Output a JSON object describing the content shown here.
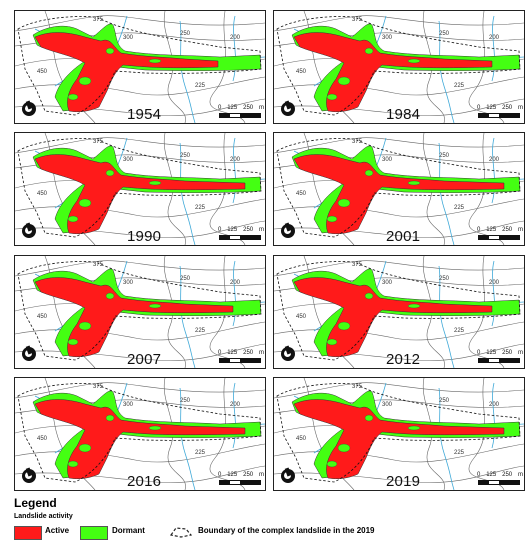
{
  "panels": [
    {
      "year": "1954",
      "active": "low"
    },
    {
      "year": "1984",
      "active": "medium"
    },
    {
      "year": "1990",
      "active": "high"
    },
    {
      "year": "2001",
      "active": "high"
    },
    {
      "year": "2007",
      "active": "medium"
    },
    {
      "year": "2012",
      "active": "medium"
    },
    {
      "year": "2016",
      "active": "high"
    },
    {
      "year": "2019",
      "active": "high"
    }
  ],
  "scale": {
    "labels": [
      "0",
      "125",
      "250"
    ],
    "unit": "m"
  },
  "contour_labels": [
    "375",
    "300",
    "250",
    "200",
    "450",
    "225"
  ],
  "legend": {
    "title": "Legend",
    "subtitle": "Landslide activity",
    "active": "Active",
    "dormant": "Dormant",
    "boundary": "Boundary of the complex landslide in the 2019"
  },
  "colors": {
    "active": "#ff1a1a",
    "dormant": "#44ff12",
    "contours": "#666666",
    "streams": "#3fa9d8"
  }
}
